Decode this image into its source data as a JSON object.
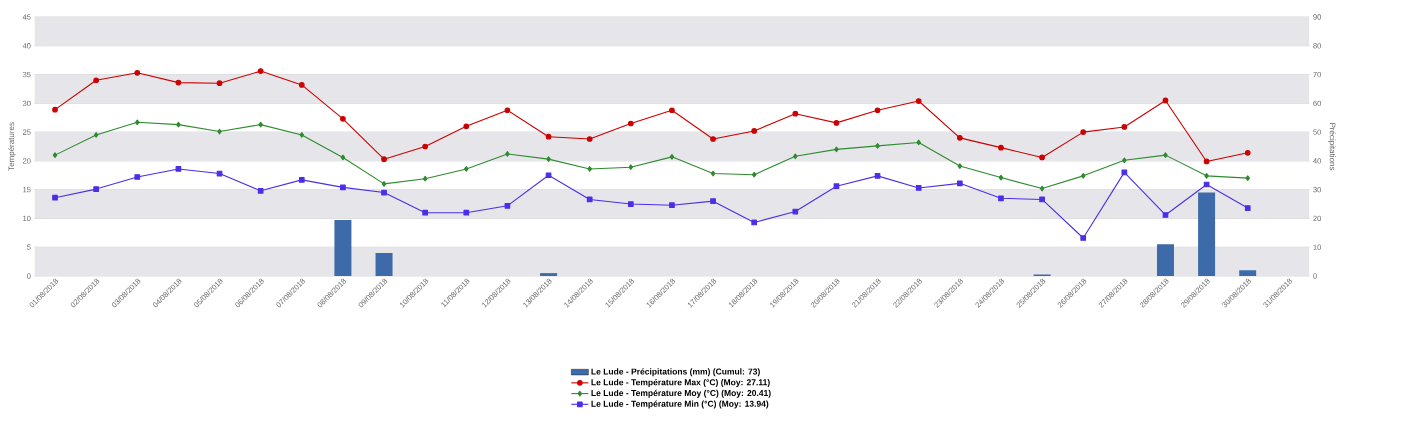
{
  "chart_data": {
    "type": "line",
    "ylabel": "Températures",
    "y2label": "Précipitations",
    "categories": [
      "01/08/2018",
      "02/08/2018",
      "03/08/2018",
      "04/08/2018",
      "05/08/2018",
      "06/08/2018",
      "07/08/2018",
      "08/08/2018",
      "09/08/2018",
      "10/08/2018",
      "11/08/2018",
      "12/08/2018",
      "13/08/2018",
      "14/08/2018",
      "15/08/2018",
      "16/08/2018",
      "17/08/2018",
      "18/08/2018",
      "19/08/2018",
      "20/08/2018",
      "21/08/2018",
      "22/08/2018",
      "23/08/2018",
      "24/08/2018",
      "25/08/2018",
      "26/08/2018",
      "27/08/2018",
      "28/08/2018",
      "29/08/2018",
      "30/08/2018",
      "31/08/2018"
    ],
    "series": [
      {
        "name": "Le Lude - Précipitations (mm) (Cumul: 73)",
        "type": "bar",
        "axis": "y2",
        "color": "#3d6aa8",
        "values": [
          0,
          0,
          0,
          0,
          0,
          0,
          0,
          19.5,
          8,
          0,
          0,
          0,
          1,
          0,
          0,
          0,
          0,
          0,
          0,
          0,
          0,
          0,
          0,
          0,
          0.5,
          0,
          0,
          11,
          29,
          2,
          null
        ]
      },
      {
        "name": "Le Lude - Température Max (°C) (Moy: 27.11)",
        "color": "#cc0000",
        "marker": "circle",
        "values": [
          28.9,
          34,
          35.3,
          33.6,
          33.5,
          35.6,
          33.2,
          27.3,
          20.3,
          22.5,
          26,
          28.8,
          24.2,
          23.8,
          26.5,
          28.8,
          23.8,
          25.2,
          28.2,
          26.6,
          28.8,
          30.4,
          24,
          22.3,
          20.6,
          25,
          25.9,
          30.5,
          19.9,
          21.4,
          null
        ]
      },
      {
        "name": "Le Lude - Température Moy (°C) (Moy: 20.41)",
        "color": "#2e8b2e",
        "marker": "diamond",
        "values": [
          21,
          24.5,
          26.7,
          26.3,
          25.1,
          26.3,
          24.5,
          20.6,
          16,
          16.9,
          18.6,
          21.2,
          20.3,
          18.6,
          18.9,
          20.7,
          17.8,
          17.6,
          20.8,
          22,
          22.6,
          23.2,
          19.1,
          17.1,
          15.2,
          17.4,
          20.1,
          21,
          17.4,
          17,
          null
        ]
      },
      {
        "name": "Le Lude - Température Min (°C) (Moy: 13.94)",
        "color": "#4b2fe8",
        "marker": "square",
        "values": [
          13.6,
          15.1,
          17.2,
          18.6,
          17.8,
          14.8,
          16.7,
          15.4,
          14.5,
          11,
          11,
          12.2,
          17.5,
          13.3,
          12.5,
          12.3,
          13,
          9.3,
          11.2,
          15.6,
          17.4,
          15.3,
          16.1,
          13.5,
          13.3,
          6.6,
          18,
          10.6,
          15.9,
          11.8,
          null
        ]
      }
    ],
    "ylim": [
      0,
      45
    ],
    "yticks": [
      0,
      5,
      10,
      15,
      20,
      25,
      30,
      35,
      40,
      45
    ],
    "y2lim": [
      0,
      90
    ],
    "y2ticks": [
      0,
      10,
      20,
      30,
      40,
      50,
      60,
      70,
      80,
      90
    ],
    "bands": [
      {
        "axis": "y",
        "from": 0,
        "to": 5,
        "color": "#e6e6ea"
      },
      {
        "axis": "y",
        "from": 10,
        "to": 15,
        "color": "#e6e6ea"
      },
      {
        "axis": "y",
        "from": 20,
        "to": 25,
        "color": "#e6e6ea"
      },
      {
        "axis": "y",
        "from": 30,
        "to": 35,
        "color": "#e6e6ea"
      },
      {
        "axis": "y",
        "from": 40,
        "to": 45,
        "color": "#e6e6ea"
      }
    ],
    "grid": "y",
    "legend": "bottom"
  }
}
